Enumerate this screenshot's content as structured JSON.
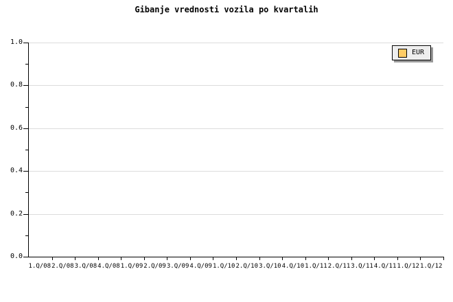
{
  "title": "Gibanje vrednosti vozila po kvartalih",
  "legend": {
    "position": "top-right",
    "items": [
      {
        "label": "EUR",
        "swatch_color": "#FFCC66"
      }
    ]
  },
  "chart_data": {
    "type": "line",
    "title": "Gibanje vrednosti vozila po kvartalih",
    "xlabel": "",
    "ylabel": "",
    "categories": [
      "1.Q/08",
      "2.Q/08",
      "3.Q/08",
      "4.Q/08",
      "1.Q/09",
      "2.Q/09",
      "3.Q/09",
      "4.Q/09",
      "1.Q/10",
      "2.Q/10",
      "3.Q/10",
      "4.Q/10",
      "1.Q/11",
      "2.Q/11",
      "3.Q/11",
      "4.Q/11",
      "1.Q/12",
      "1.Q/12"
    ],
    "y_ticks": [
      "1.0",
      "0.8",
      "0.6",
      "0.4",
      "0.2",
      "0.0"
    ],
    "ylim": [
      0.0,
      1.0
    ],
    "y_major_step": 0.2,
    "y_minor_step": 0.1,
    "grid": "horizontal-major-only",
    "legend_position": "top-right",
    "series": [
      {
        "name": "EUR",
        "color": "#FFCC66",
        "values": []
      }
    ]
  },
  "colors": {
    "background": "#FFFFFF",
    "axis": "#000000",
    "gridline": "#DCDCDC",
    "legend_bg": "#EEEEEE",
    "legend_border": "#000000",
    "legend_shadow": "#999999",
    "text": "#000000"
  }
}
